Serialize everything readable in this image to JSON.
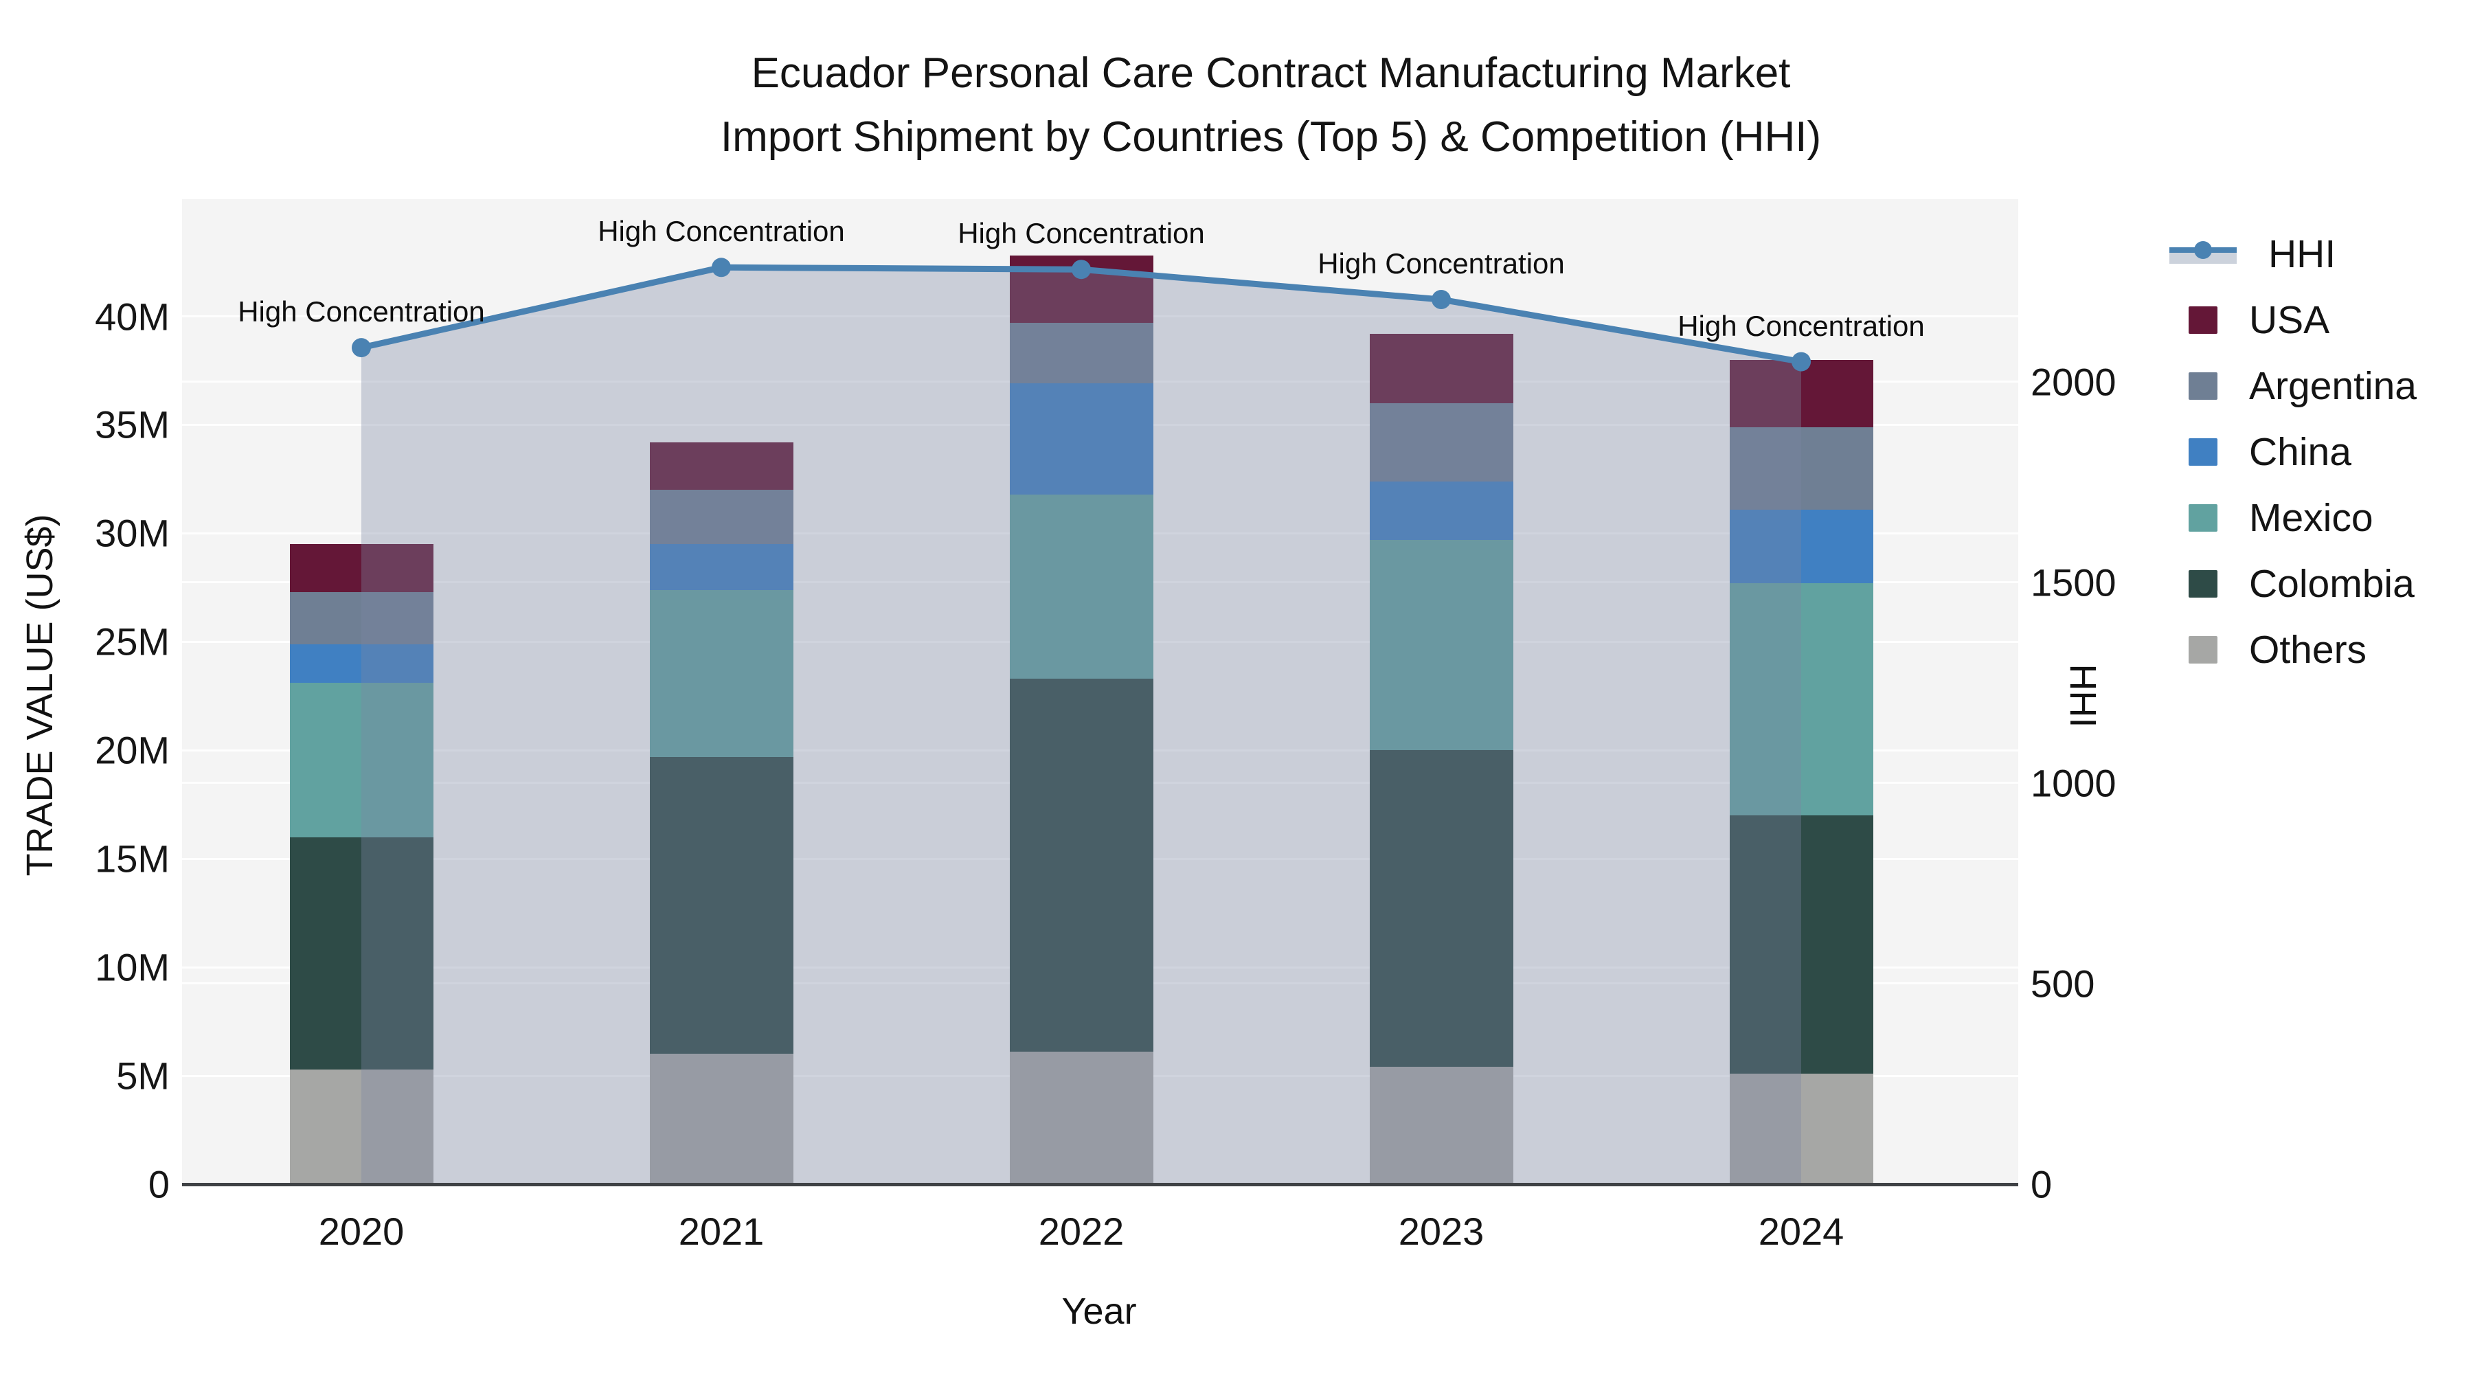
{
  "title": {
    "line1": "Ecuador Personal Care Contract Manufacturing Market",
    "line2": "Import Shipment by Countries (Top 5) & Competition (HHI)"
  },
  "axes": {
    "x": {
      "label": "Year",
      "ticks": [
        "2020",
        "2021",
        "2022",
        "2023",
        "2024"
      ]
    },
    "y_left": {
      "label": "TRADE VALUE (US$)",
      "ticks": [
        "0",
        "5M",
        "10M",
        "15M",
        "20M",
        "25M",
        "30M",
        "35M",
        "40M"
      ]
    },
    "y_right": {
      "label": "HHI",
      "ticks": [
        "0",
        "500",
        "1000",
        "1500",
        "2000"
      ]
    }
  },
  "legend": [
    {
      "label": "HHI",
      "type": "line",
      "color": "#4a82b2"
    },
    {
      "label": "USA",
      "type": "square",
      "color": "#641737"
    },
    {
      "label": "Argentina",
      "type": "square",
      "color": "#6f7f94"
    },
    {
      "label": "China",
      "type": "square",
      "color": "#4080c2"
    },
    {
      "label": "Mexico",
      "type": "square",
      "color": "#61a2a0"
    },
    {
      "label": "Colombia",
      "type": "square",
      "color": "#2e4b47"
    },
    {
      "label": "Others",
      "type": "square",
      "color": "#a6a7a5"
    }
  ],
  "colors": {
    "plot_background": "#f4f4f4",
    "hhi_line": "#4a82b2",
    "hhi_area_fill": "rgba(122,135,162,0.35)",
    "axis_line": "#3f4245",
    "gridline": "rgba(255,255,255,0.9)"
  },
  "chart_data": {
    "type": [
      "bar-stacked",
      "line"
    ],
    "title": "Ecuador Personal Care Contract Manufacturing Market Import Shipment by Countries (Top 5) & Competition (HHI)",
    "categories": [
      "2020",
      "2021",
      "2022",
      "2023",
      "2024"
    ],
    "xlabel": "Year",
    "ylabel_left": "TRADE VALUE (US$)",
    "ylabel_right": "HHI",
    "ylim_left_musd": [
      0,
      45.4
    ],
    "ylim_right_hhi": [
      0,
      2455
    ],
    "grid": true,
    "legend_position": "right",
    "bar_unit": "million US$",
    "series": [
      {
        "name": "Others",
        "color": "#a6a7a5",
        "values": [
          5.3,
          6.0,
          6.1,
          5.4,
          5.1
        ]
      },
      {
        "name": "Colombia",
        "color": "#2e4b47",
        "values": [
          10.7,
          13.7,
          17.2,
          14.6,
          11.9
        ]
      },
      {
        "name": "Mexico",
        "color": "#61a2a0",
        "values": [
          7.1,
          7.7,
          8.5,
          9.7,
          10.7
        ]
      },
      {
        "name": "China",
        "color": "#4080c2",
        "values": [
          1.8,
          2.1,
          5.1,
          2.7,
          3.4
        ]
      },
      {
        "name": "Argentina",
        "color": "#6f7f94",
        "values": [
          2.4,
          2.5,
          2.8,
          3.6,
          3.8
        ]
      },
      {
        "name": "USA",
        "color": "#641737",
        "values": [
          2.2,
          2.2,
          3.1,
          3.2,
          3.1
        ]
      }
    ],
    "bar_totals_musd": [
      29.5,
      34.2,
      42.8,
      39.2,
      38.0
    ],
    "line_series": {
      "name": "HHI",
      "values": [
        2085,
        2285,
        2280,
        2205,
        2050
      ],
      "area_fill": true
    },
    "annotations": [
      {
        "text": "High Concentration",
        "category": "2020"
      },
      {
        "text": "High Concentration",
        "category": "2021"
      },
      {
        "text": "High Concentration",
        "category": "2022"
      },
      {
        "text": "High Concentration",
        "category": "2023"
      },
      {
        "text": "High Concentration",
        "category": "2024"
      }
    ]
  }
}
